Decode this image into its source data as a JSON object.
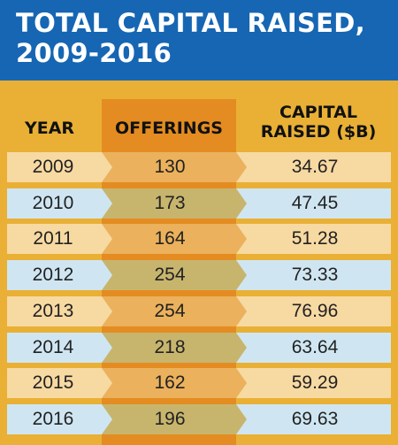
{
  "title": "TOTAL CAPITAL RAISED,\n2009-2016",
  "headers": {
    "year": "YEAR",
    "offerings": "OFFERINGS",
    "capital": "CAPITAL\nRAISED ($B)"
  },
  "colors": {
    "title_band": "#1666b3",
    "background": "#e9b035",
    "offerings_column": "#e48c21",
    "row_peach": "#f7d9a2",
    "row_blue": "#cfe6f2",
    "offer_cell_odd": "#ebb15c",
    "offer_cell_even": "#c7b56e"
  },
  "chart_data": {
    "type": "table",
    "columns": [
      "YEAR",
      "OFFERINGS",
      "CAPITAL RAISED ($B)"
    ],
    "rows": [
      {
        "year": "2009",
        "offerings": "130",
        "capital": "34.67"
      },
      {
        "year": "2010",
        "offerings": "173",
        "capital": "47.45"
      },
      {
        "year": "2011",
        "offerings": "164",
        "capital": "51.28"
      },
      {
        "year": "2012",
        "offerings": "254",
        "capital": "73.33"
      },
      {
        "year": "2013",
        "offerings": "254",
        "capital": "76.96"
      },
      {
        "year": "2014",
        "offerings": "218",
        "capital": "63.64"
      },
      {
        "year": "2015",
        "offerings": "162",
        "capital": "59.29"
      },
      {
        "year": "2016",
        "offerings": "196",
        "capital": "69.63"
      }
    ]
  }
}
